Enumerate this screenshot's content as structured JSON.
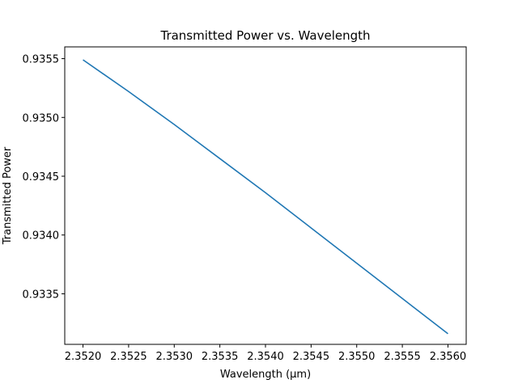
{
  "chart_data": {
    "type": "line",
    "title": "Transmitted Power vs. Wavelength",
    "xlabel": "Wavelength (µm)",
    "ylabel": "Transmitted Power",
    "xlim": [
      2.3518,
      2.3562
    ],
    "ylim": [
      0.93307,
      0.9356
    ],
    "xticks": [
      "2.3520",
      "2.3525",
      "2.3530",
      "2.3535",
      "2.3540",
      "2.3545",
      "2.3550",
      "2.3555",
      "2.3560"
    ],
    "yticks": [
      "0.9335",
      "0.9340",
      "0.9345",
      "0.9350",
      "0.9355"
    ],
    "grid": false,
    "series": [
      {
        "color": "#1f77b4",
        "x": [
          2.352,
          2.3525,
          2.353,
          2.3535,
          2.354,
          2.3545,
          2.355,
          2.3555,
          2.356
        ],
        "y": [
          0.93549,
          0.93522,
          0.93494,
          0.93465,
          0.93436,
          0.93406,
          0.93376,
          0.93346,
          0.93316
        ]
      }
    ]
  }
}
